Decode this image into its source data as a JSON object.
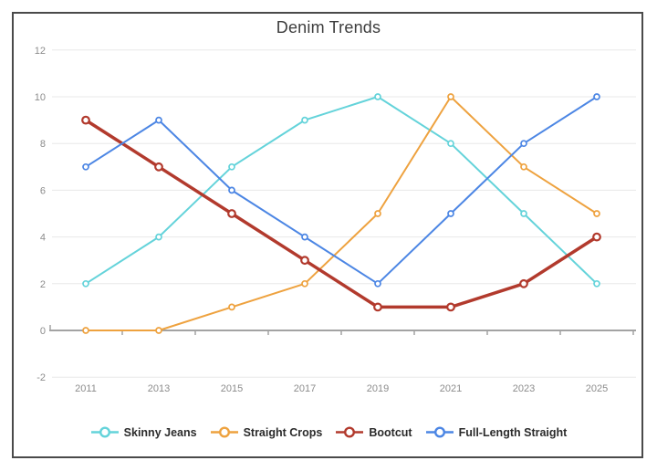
{
  "chart_data": {
    "type": "line",
    "title": "Denim Trends",
    "categories": [
      "2011",
      "2013",
      "2015",
      "2017",
      "2019",
      "2021",
      "2023",
      "2025"
    ],
    "y_ticks": [
      12,
      10,
      8,
      6,
      4,
      2,
      0,
      -2
    ],
    "ylim": [
      -2,
      12
    ],
    "grid": true,
    "legend_position": "bottom",
    "series": [
      {
        "name": "Skinny Jeans",
        "color": "#64d3da",
        "line_width": 2,
        "marker_radius": 3,
        "values": [
          2,
          4,
          7,
          9,
          10,
          8,
          5,
          2
        ]
      },
      {
        "name": "Straight Crops",
        "color": "#eea23f",
        "line_width": 2,
        "marker_radius": 3,
        "values": [
          0,
          0,
          1,
          2,
          5,
          10,
          7,
          5
        ]
      },
      {
        "name": "Bootcut",
        "color": "#b23a2d",
        "line_width": 3.5,
        "marker_radius": 3.8,
        "values": [
          9,
          7,
          5,
          3,
          1,
          1,
          2,
          4
        ]
      },
      {
        "name": "Full-Length Straight",
        "color": "#4c86e4",
        "line_width": 2,
        "marker_radius": 3,
        "values": [
          7,
          9,
          6,
          4,
          2,
          5,
          8,
          10
        ]
      }
    ],
    "colors": {
      "grid_line": "#e8e8e8",
      "axis_line": "#a3a3a3",
      "tick_label": "#8c8c8c",
      "frame_border": "#4a4a4a"
    }
  }
}
